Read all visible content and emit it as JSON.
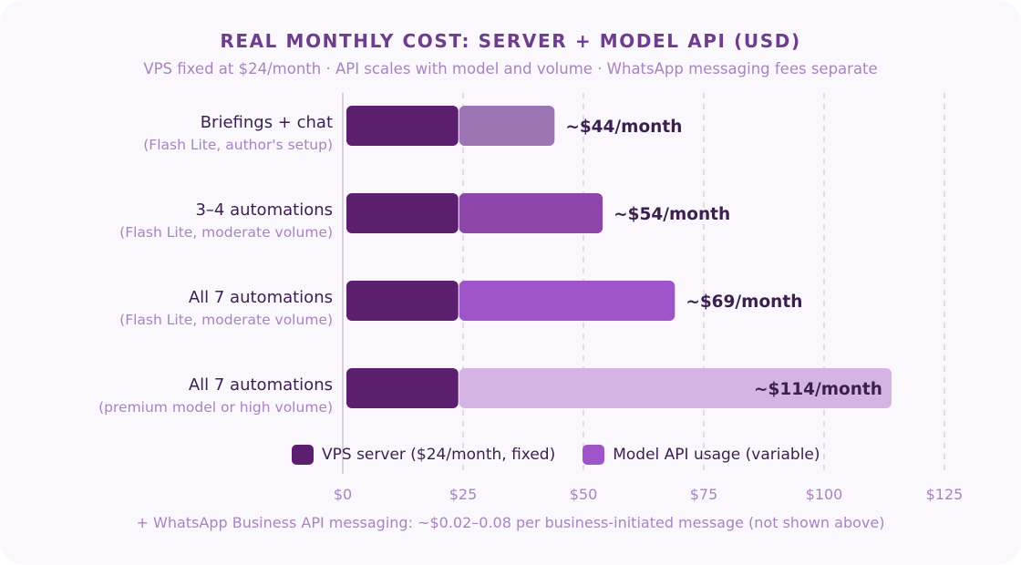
{
  "chart_data": {
    "type": "bar",
    "stacked": true,
    "orientation": "horizontal",
    "title": "REAL MONTHLY COST: SERVER + MODEL API (USD)",
    "subtitle": "VPS fixed at $24/month · API scales with model and volume · WhatsApp messaging fees separate",
    "footnote": "+ WhatsApp Business API messaging: ~$0.02–0.08 per business-initiated message (not shown above)",
    "categories": [
      {
        "label": "Briefings + chat",
        "sublabel": "(Flash Lite, author's setup)",
        "total_label": "~$44/month",
        "api_color": "#9b75b4"
      },
      {
        "label": "3–4 automations",
        "sublabel": "(Flash Lite, moderate volume)",
        "total_label": "~$54/month",
        "api_color": "#8c45a8"
      },
      {
        "label": "All 7 automations",
        "sublabel": "(Flash Lite, moderate volume)",
        "total_label": "~$69/month",
        "api_color": "#9e55ca"
      },
      {
        "label": "All 7 automations",
        "sublabel": "(premium model or high volume)",
        "total_label": "~$114/month",
        "api_color": "#d5b3e3"
      }
    ],
    "series": [
      {
        "name": "VPS server ($24/month, fixed)",
        "values": [
          24,
          24,
          24,
          24
        ],
        "color": "#5c1f70"
      },
      {
        "name": "Model API usage (variable)",
        "values": [
          20,
          30,
          45,
          90
        ],
        "color": "#9e55ca"
      }
    ],
    "xlim": [
      0,
      125
    ],
    "xticks": [
      {
        "value": 0,
        "label": "$0"
      },
      {
        "value": 25,
        "label": "$25"
      },
      {
        "value": 50,
        "label": "$50"
      },
      {
        "value": 75,
        "label": "$75"
      },
      {
        "value": 100,
        "label": "$100"
      },
      {
        "value": 125,
        "label": "$125"
      }
    ],
    "grid": true,
    "legend_position": "bottom"
  }
}
